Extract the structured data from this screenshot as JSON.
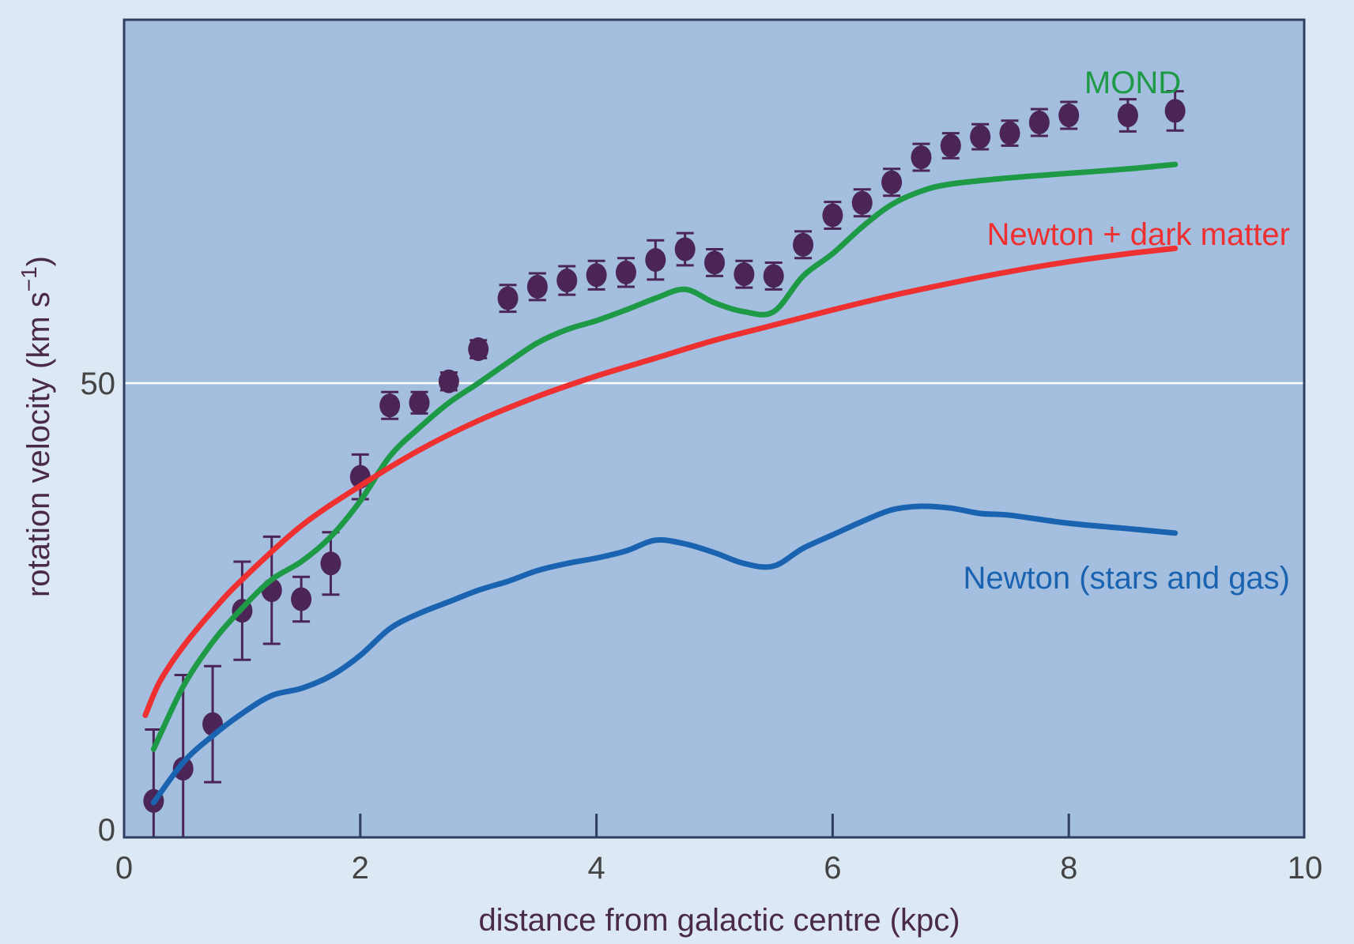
{
  "chart_data": {
    "type": "line",
    "xlabel": "distance from galactic centre (kpc)",
    "ylabel": "rotation velocity (km s",
    "ylabel_superscript": "−1",
    "ylabel_close": ")",
    "xlim": [
      0,
      10
    ],
    "ylim": [
      0,
      77
    ],
    "x_ticks": [
      0,
      2,
      4,
      6,
      8,
      10
    ],
    "x_tick_labels": [
      "0",
      "2",
      "4",
      "6",
      "8",
      "10"
    ],
    "y_ticks": [
      0,
      50
    ],
    "y_tick_labels": [
      "0",
      "50"
    ],
    "reference_line_y": 50,
    "grid": false,
    "colors": {
      "page_background": "#dce8f3",
      "plot_background": "#a3bedf",
      "axis": "#2f3d60",
      "reference_line": "#ffffff",
      "tick_labels": "#444444",
      "observations": "#4b2556",
      "axis_title": "#4a2a4a"
    },
    "series": [
      {
        "name": "MOND",
        "color": "#1e9a47",
        "x": [
          0.25,
          0.5,
          0.75,
          1.0,
          1.25,
          1.5,
          1.75,
          2.0,
          2.25,
          2.5,
          2.75,
          3.0,
          3.25,
          3.5,
          3.75,
          4.0,
          4.25,
          4.5,
          4.75,
          5.0,
          5.25,
          5.5,
          5.75,
          6.0,
          6.25,
          6.5,
          6.75,
          7.0,
          7.5,
          8.0,
          8.5,
          8.9
        ],
        "y": [
          9.0,
          16.0,
          21.0,
          24.8,
          28.0,
          30.0,
          32.8,
          36.8,
          41.8,
          45.0,
          47.8,
          50.0,
          52.3,
          54.5,
          56.0,
          57.0,
          58.2,
          59.5,
          60.5,
          59.0,
          58.0,
          58.0,
          62.0,
          64.5,
          67.5,
          70.0,
          71.5,
          72.3,
          73.0,
          73.5,
          74.0,
          74.5
        ]
      },
      {
        "name": "Newton + dark matter",
        "color": "#ee3030",
        "x": [
          0.18,
          0.3,
          0.5,
          0.75,
          1.0,
          1.5,
          2.0,
          2.5,
          3.0,
          3.5,
          4.0,
          4.5,
          5.0,
          5.5,
          6.0,
          6.5,
          7.0,
          7.5,
          8.0,
          8.5,
          8.9
        ],
        "y": [
          12.8,
          16.5,
          20.5,
          24.5,
          28.0,
          34.0,
          38.5,
          42.5,
          45.8,
          48.5,
          50.8,
          52.8,
          54.8,
          56.5,
          58.2,
          59.8,
          61.2,
          62.5,
          63.6,
          64.5,
          65.1
        ]
      },
      {
        "name": "Newton (stars and gas)",
        "color": "#1a63b0",
        "x": [
          0.25,
          0.5,
          0.75,
          1.0,
          1.25,
          1.5,
          1.75,
          2.0,
          2.25,
          2.5,
          2.75,
          3.0,
          3.25,
          3.5,
          3.75,
          4.0,
          4.25,
          4.5,
          4.75,
          5.0,
          5.25,
          5.5,
          5.75,
          6.0,
          6.25,
          6.5,
          6.75,
          7.0,
          7.25,
          7.5,
          8.0,
          8.5,
          8.9
        ],
        "y": [
          3.0,
          7.5,
          10.5,
          13.0,
          15.0,
          15.8,
          17.2,
          19.5,
          22.5,
          24.2,
          25.5,
          26.8,
          27.8,
          29.0,
          29.8,
          30.4,
          31.2,
          32.4,
          32.0,
          31.0,
          29.8,
          29.5,
          31.5,
          33.0,
          34.5,
          35.8,
          36.2,
          36.0,
          35.4,
          35.2,
          34.3,
          33.7,
          33.2
        ]
      }
    ],
    "observations": {
      "x": [
        0.25,
        0.5,
        0.75,
        1.0,
        1.25,
        1.5,
        1.75,
        2.0,
        2.25,
        2.5,
        2.75,
        3.0,
        3.25,
        3.5,
        3.75,
        4.0,
        4.25,
        4.5,
        4.75,
        5.0,
        5.25,
        5.5,
        5.75,
        6.0,
        6.25,
        6.5,
        6.75,
        7.0,
        7.25,
        7.5,
        7.75,
        8.0,
        8.5,
        8.9
      ],
      "y": [
        3.2,
        6.8,
        11.8,
        24.5,
        26.8,
        25.8,
        29.8,
        39.5,
        47.5,
        47.8,
        50.2,
        53.8,
        59.5,
        60.8,
        61.5,
        62.1,
        62.4,
        63.8,
        65.0,
        63.5,
        62.2,
        62.0,
        65.5,
        68.8,
        70.2,
        72.5,
        75.3,
        76.6,
        77.6,
        78.0,
        79.2,
        80.0,
        80.0,
        80.5
      ],
      "err": [
        8.0,
        10.5,
        6.5,
        5.5,
        6.0,
        2.5,
        3.5,
        2.5,
        1.5,
        1.2,
        1.0,
        1.0,
        1.5,
        1.5,
        1.6,
        1.6,
        1.6,
        2.2,
        1.8,
        1.5,
        1.5,
        1.5,
        1.5,
        1.5,
        1.5,
        1.5,
        1.5,
        1.4,
        1.4,
        1.4,
        1.5,
        1.5,
        1.8,
        2.2
      ]
    },
    "labels": {
      "mond": "MOND",
      "newton_dm": "Newton + dark matter",
      "newton_stars": "Newton (stars and gas)"
    }
  }
}
